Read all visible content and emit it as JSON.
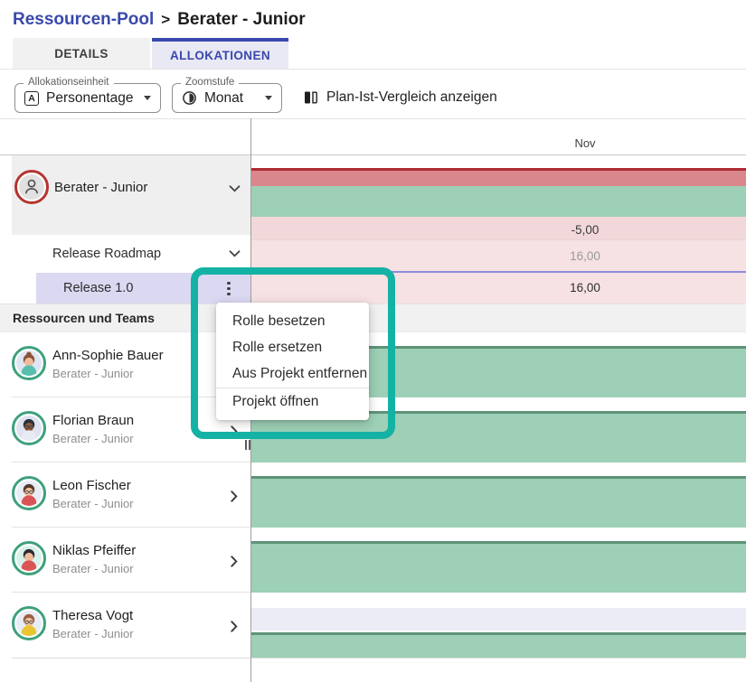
{
  "breadcrumb": {
    "parent": "Ressourcen-Pool",
    "separator": ">",
    "current": "Berater - Junior"
  },
  "tabs": [
    {
      "id": "details",
      "label": "DETAILS",
      "active": false
    },
    {
      "id": "allokationen",
      "label": "ALLOKATIONEN",
      "active": true
    }
  ],
  "toolbar": {
    "allocation_unit": {
      "label": "Allokationseinheit",
      "value": "Personentage",
      "icon_letter": "A",
      "icon": "letter-a-icon"
    },
    "zoom_level": {
      "label": "Zoomstufe",
      "value": "Monat",
      "icon": "contrast-icon"
    },
    "plan_ist": {
      "label": "Plan-Ist-Vergleich anzeigen",
      "icon": "compare-pages-icon"
    }
  },
  "timeline": {
    "month": "Nov",
    "group_total": "-5,00",
    "roadmap_value": "16,00",
    "release_value": "16,00"
  },
  "tree": {
    "group": "Berater - Junior",
    "project": "Release Roadmap",
    "role": "Release 1.0",
    "section": "Ressourcen und Teams"
  },
  "context_menu": {
    "items": [
      "Rolle besetzen",
      "Rolle ersetzen",
      "Aus Projekt entfernen",
      "Projekt öffnen"
    ]
  },
  "people": [
    {
      "name": "Ann-Sophie Bauer",
      "role": "Berater - Junior",
      "allocation": "full",
      "avatar": {
        "bg": "#dfe6f3",
        "hair": "#8a5238",
        "skin": "#f0bd9b",
        "shirt": "#58bfae",
        "bun": true,
        "glasses": false
      }
    },
    {
      "name": "Florian Braun",
      "role": "Berater - Junior",
      "allocation": "full",
      "avatar": {
        "bg": "#dfe3f0",
        "hair": "#26323c",
        "skin": "#8d5a3b",
        "shirt": "#e9ebf3",
        "bun": false,
        "glasses": true
      }
    },
    {
      "name": "Leon Fischer",
      "role": "Berater - Junior",
      "allocation": "full",
      "avatar": {
        "bg": "#e8ecf5",
        "hair": "#53392a",
        "skin": "#f2c3a0",
        "shirt": "#d95555",
        "bun": false,
        "glasses": true
      }
    },
    {
      "name": "Niklas Pfeiffer",
      "role": "Berater - Junior",
      "allocation": "full",
      "avatar": {
        "bg": "#d9f2e9",
        "hair": "#2b2b33",
        "skin": "#f0bd9b",
        "shirt": "#d95555",
        "bun": false,
        "glasses": false
      }
    },
    {
      "name": "Theresa Vogt",
      "role": "Berater - Junior",
      "allocation": "split",
      "avatar": {
        "bg": "#e8ecf5",
        "hair": "#9c5f3f",
        "skin": "#f2c3a0",
        "shirt": "#e8c531",
        "bun": false,
        "glasses": true
      }
    }
  ],
  "colors": {
    "accent_indigo": "#3949ab",
    "tab_active_bg": "#e9e8f5",
    "tab_inactive_bg": "#f1f1f1",
    "group_row_bg": "#efefef",
    "section_row_bg": "#f1f1f2",
    "release_row_bg": "#dbd8f2",
    "pink_row": "#f6e1e3",
    "pink_row_dark": "#f2d8da",
    "red_bar": "#d9878d",
    "red_bar_border": "#ae2b33",
    "green_bar": "#9dd0b6",
    "green_bar_border": "#5d9377",
    "lavender_band": "#ebecf6",
    "purple_line": "#8d8dd8",
    "annotation_teal": "#14b2a5",
    "avatar_ring_green": "#3da17c",
    "avatar_ring_red": "#b5342f"
  }
}
